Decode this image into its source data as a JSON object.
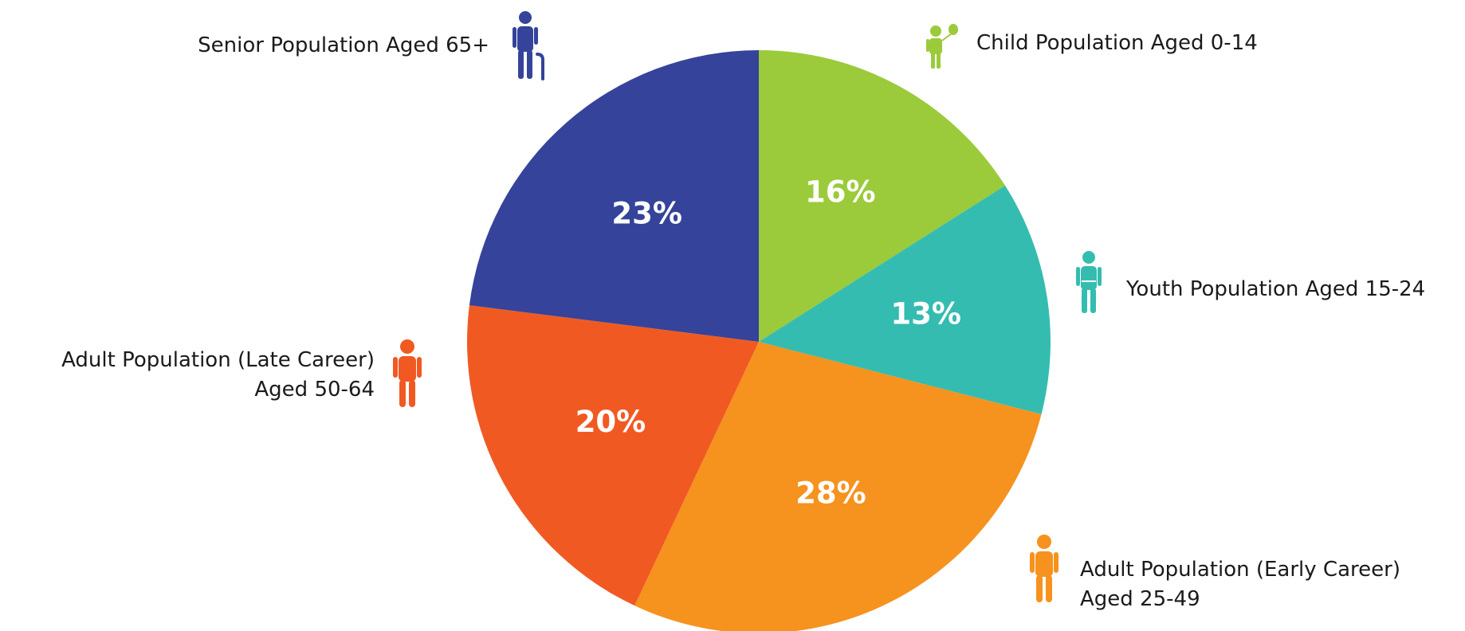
{
  "chart_data": {
    "type": "pie",
    "slices": [
      {
        "key": "child",
        "label_lines": [
          "Child Population Aged 0-14"
        ],
        "value": 16,
        "value_label": "16%",
        "color": "#9bca3b",
        "icon": "child-with-balloon-icon"
      },
      {
        "key": "youth",
        "label_lines": [
          "Youth Population Aged 15-24"
        ],
        "value": 13,
        "value_label": "13%",
        "color": "#35bcb0",
        "icon": "youth-person-icon"
      },
      {
        "key": "early",
        "label_lines": [
          "Adult Population (Early Career)",
          "Aged 25-49"
        ],
        "value": 28,
        "value_label": "28%",
        "color": "#f6921e",
        "icon": "adult-person-icon"
      },
      {
        "key": "late",
        "label_lines": [
          "Adult Population (Late Career)",
          "Aged 50-64"
        ],
        "value": 20,
        "value_label": "20%",
        "color": "#f05a22",
        "icon": "adult-person-icon"
      },
      {
        "key": "senior",
        "label_lines": [
          "Senior Population Aged 65+"
        ],
        "value": 23,
        "value_label": "23%",
        "color": "#35439a",
        "icon": "senior-with-cane-icon"
      }
    ]
  }
}
